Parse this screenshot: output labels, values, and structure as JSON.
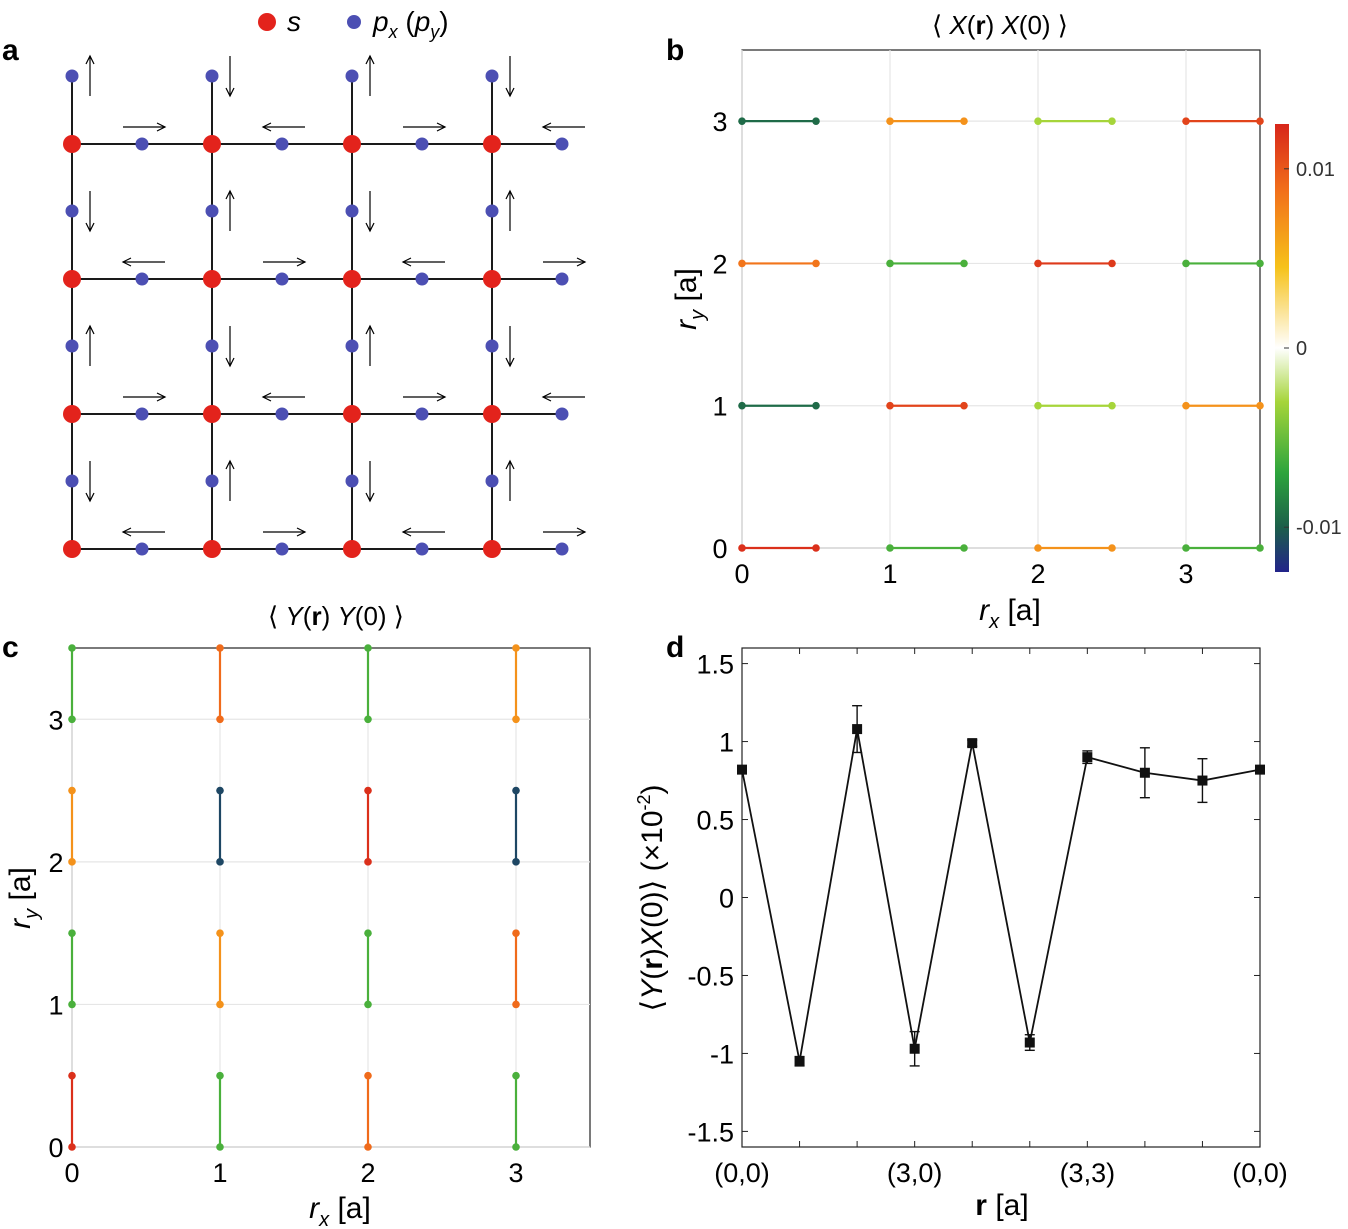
{
  "colors": {
    "s_site": "#e3231c",
    "p_site": "#4c4fb3",
    "bond": "#1a1a1a",
    "grid": "#e6e6e6"
  },
  "panels": {
    "a": {
      "label": "a"
    },
    "b": {
      "label": "b"
    },
    "c": {
      "label": "c"
    },
    "d": {
      "label": "d"
    }
  },
  "chart_data": [
    {
      "panel": "a",
      "type": "other",
      "description_kind": "lattice",
      "legend": [
        {
          "label": "s",
          "color": "#e3231c"
        },
        {
          "label": "p",
          "sub": "x",
          "paren_label": "p",
          "paren_sub": "y",
          "color": "#4c4fb3"
        }
      ],
      "size": 4,
      "x_spin_arrows": [
        [
          "right",
          "left",
          "right",
          "left"
        ],
        [
          "left",
          "right",
          "left",
          "right"
        ],
        [
          "right",
          "left",
          "right",
          "left"
        ],
        [
          "left",
          "right",
          "left",
          "right"
        ]
      ],
      "y_spin_arrows": [
        [
          "up",
          "down",
          "up",
          "down"
        ],
        [
          "down",
          "up",
          "down",
          "up"
        ],
        [
          "up",
          "down",
          "up",
          "down"
        ],
        [
          "down",
          "up",
          "down",
          "up"
        ]
      ]
    },
    {
      "panel": "b",
      "type": "heatmap",
      "title": "⟨X̂(r) X̂(0)⟩",
      "title_parts": {
        "left": "⟨",
        "op1": "X",
        "arg": "(r)",
        "op2": "X",
        "arg2": "(0)",
        "right": "⟩"
      },
      "xlabel": "r",
      "xlabel_sub": "x",
      "xlabel_unit": "[a]",
      "ylabel": "r",
      "ylabel_sub": "y",
      "ylabel_unit": "[a]",
      "xlim": [
        0,
        3.5
      ],
      "ylim": [
        0,
        3.5
      ],
      "xticks": [
        "0",
        "1",
        "2",
        "3"
      ],
      "yticks": [
        "0",
        "1",
        "2",
        "3"
      ],
      "colorbar": {
        "min": -0.0125,
        "max": 0.0125,
        "ticks": [
          "0.01",
          "0",
          "-0.01"
        ],
        "tick_values": [
          0.01,
          0,
          -0.01
        ]
      },
      "bonds_row_y": [
        0,
        1,
        2,
        3
      ],
      "bonds_col_x": [
        0,
        1,
        2,
        3
      ],
      "values": [
        [
          0.012,
          -0.006,
          0.007,
          -0.006
        ],
        [
          -0.0095,
          0.011,
          -0.003,
          0.007
        ],
        [
          0.0085,
          -0.006,
          0.0115,
          -0.006
        ],
        [
          -0.0095,
          0.007,
          -0.003,
          0.011
        ]
      ]
    },
    {
      "panel": "c",
      "type": "heatmap",
      "title": "⟨Ŷ(r) Ŷ(0)⟩",
      "title_parts": {
        "left": "⟨",
        "op1": "Y",
        "arg": "(r)",
        "op2": "Y",
        "arg2": "(0)",
        "right": "⟩"
      },
      "xlabel": "r",
      "xlabel_sub": "x",
      "xlabel_unit": "[a]",
      "ylabel": "r",
      "ylabel_sub": "y",
      "ylabel_unit": "[a]",
      "xlim": [
        0,
        3.5
      ],
      "ylim": [
        0,
        3.5
      ],
      "xticks": [
        "0",
        "1",
        "2",
        "3"
      ],
      "yticks": [
        "0",
        "1",
        "2",
        "3"
      ],
      "bonds_col_x": [
        0,
        1,
        2,
        3
      ],
      "bonds_row_y": [
        0,
        1,
        2,
        3
      ],
      "values": [
        [
          0.012,
          -0.006,
          0.009,
          -0.006
        ],
        [
          -0.006,
          0.007,
          -0.006,
          0.009
        ],
        [
          0.007,
          -0.011,
          0.012,
          -0.011
        ],
        [
          -0.006,
          0.009,
          -0.006,
          0.007
        ]
      ]
    },
    {
      "panel": "d",
      "type": "line",
      "ylabel": "⟨Ŷ(r) X̂(0)⟩ (×10⁻²)",
      "ylabel_parts": {
        "left": "⟨",
        "op1": "Y",
        "arg": "(r)",
        "op2": "X",
        "arg2": "(0)",
        "right": "⟩",
        "unit_pre": "(×10",
        "unit_exp": "-2",
        "unit_post": ")"
      },
      "xlabel": "r",
      "xlabel_unit": "[a]",
      "xlim": [
        0,
        9
      ],
      "ylim": [
        -1.6,
        1.6
      ],
      "yticks": [
        "1.5",
        "1",
        "0.5",
        "0",
        "-0.5",
        "-1",
        "-1.5"
      ],
      "ytick_values": [
        1.5,
        1,
        0.5,
        0,
        -0.5,
        -1,
        -1.5
      ],
      "xtick_positions": [
        0,
        3,
        6,
        9
      ],
      "xticks": [
        "(0,0)",
        "(3,0)",
        "(3,3)",
        "(0,0)"
      ],
      "x": [
        0,
        1,
        2,
        3,
        4,
        5,
        6,
        7,
        8,
        9
      ],
      "y": [
        0.82,
        -1.05,
        1.08,
        -0.97,
        0.99,
        -0.93,
        0.9,
        0.8,
        0.75,
        0.82
      ],
      "err": [
        0.0,
        0.03,
        0.15,
        0.11,
        0.02,
        0.05,
        0.04,
        0.16,
        0.14,
        0.0
      ]
    }
  ]
}
